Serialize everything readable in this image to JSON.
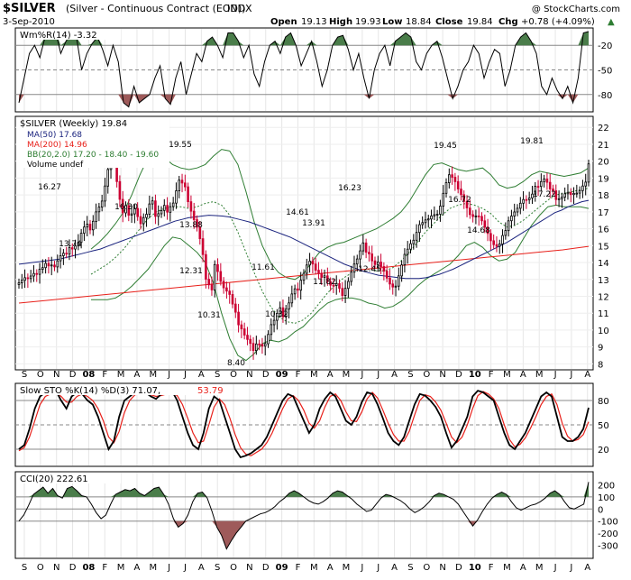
{
  "header": {
    "symbol": "$SILVER",
    "description": "(Silver - Continuous Contract (EOD))",
    "exchange": "INDX",
    "date": "3-Sep-2010",
    "copyright": "@ StockCharts.com",
    "open_label": "Open",
    "open": "19.13",
    "high_label": "High",
    "high": "19.93",
    "low_label": "Low",
    "low": "18.84",
    "close_label": "Close",
    "close": "19.84",
    "chg_label": "Chg",
    "chg": "+0.78 (+4.09%)",
    "chg_arrow": "▲"
  },
  "legends": {
    "wr": "Wm%R(14) -3.32",
    "price_title": "$SILVER (Weekly) 19.84",
    "ma50": "MA(50) 17.68",
    "ma200": "MA(200) 14.96",
    "bb": "BB(20,2.0) 17.20 - 18.40 - 19.60",
    "volume": "Volume undef",
    "sto_a": "Slow STO %K(14) %D(3) 71.07,",
    "sto_b": "53.79",
    "cci": "CCI(20) 222.61"
  },
  "colors": {
    "price_up": "#000000",
    "price_down": "#cc0033",
    "ma50": "#1a237e",
    "ma200": "#e8201a",
    "bollinger": "#2e7d32",
    "osc_fill_high": "#4a7d4a",
    "osc_fill_low": "#9e5a5a",
    "sto_d": "#e8201a"
  },
  "x_axis": {
    "tick_labels": [
      "S",
      "O",
      "N",
      "D",
      "08",
      "F",
      "M",
      "A",
      "M",
      "J",
      "J",
      "A",
      "S",
      "O",
      "N",
      "D",
      "09",
      "F",
      "M",
      "A",
      "M",
      "J",
      "J",
      "A",
      "S",
      "O",
      "N",
      "D",
      "10",
      "F",
      "M",
      "A",
      "M",
      "J",
      "J",
      "A"
    ]
  },
  "annotations": [
    "16.27",
    "16.30",
    "13.74",
    "19.55",
    "13.88",
    "12.31",
    "10.31",
    "8.40",
    "11.61",
    "10.32",
    "14.61",
    "13.91",
    "11.82",
    "16.23",
    "12.45",
    "19.45",
    "16.72",
    "14.68",
    "19.81",
    "17.22"
  ],
  "chart_data": [
    {
      "type": "line",
      "name": "Wm%R(14)",
      "ylim": [
        -100,
        0
      ],
      "y_ticks": [
        "-20",
        "-50",
        "-80"
      ],
      "reference_lines": [
        -20,
        -50,
        -80
      ],
      "values": [
        -90,
        -60,
        -30,
        -20,
        -35,
        -10,
        -5,
        -3,
        -30,
        -15,
        -5,
        -10,
        -50,
        -30,
        -18,
        -10,
        -25,
        -45,
        -20,
        -40,
        -90,
        -95,
        -70,
        -90,
        -85,
        -80,
        -60,
        -45,
        -85,
        -92,
        -60,
        -40,
        -80,
        -55,
        -30,
        -40,
        -15,
        -10,
        -20,
        -35,
        -5,
        -5,
        -15,
        -35,
        -20,
        -55,
        -70,
        -40,
        -20,
        -15,
        -30,
        -10,
        -5,
        -20,
        -45,
        -30,
        -15,
        -40,
        -70,
        -50,
        -20,
        -10,
        -8,
        -25,
        -50,
        -30,
        -60,
        -85,
        -50,
        -30,
        -20,
        -45,
        -15,
        -10,
        -5,
        -10,
        -40,
        -50,
        -30,
        -20,
        -15,
        -35,
        -60,
        -85,
        -70,
        -50,
        -40,
        -20,
        -30,
        -60,
        -40,
        -25,
        -30,
        -70,
        -50,
        -20,
        -10,
        -5,
        -15,
        -30,
        -70,
        -80,
        -60,
        -75,
        -85,
        -70,
        -90,
        -60,
        -5,
        -3.32
      ]
    },
    {
      "type": "candlestick",
      "name": "$SILVER (Weekly)",
      "ylim": [
        7.7,
        22.6
      ],
      "y_ticks": [
        "22",
        "21",
        "20",
        "19",
        "18",
        "17",
        "16",
        "15",
        "14",
        "13",
        "12",
        "11",
        "10",
        "9",
        "8"
      ],
      "close": [
        12.8,
        12.95,
        13.1,
        13.05,
        13.2,
        13.35,
        13.3,
        13.6,
        13.7,
        13.95,
        13.8,
        13.85,
        13.74,
        14.1,
        14.4,
        14.55,
        14.5,
        14.88,
        14.8,
        14.98,
        15.19,
        15.73,
        16.1,
        16.27,
        15.93,
        16.44,
        17.0,
        17.28,
        17.64,
        18.53,
        19.51,
        20.63,
        20.25,
        18.79,
        17.74,
        16.94,
        17.37,
        16.8,
        16.88,
        17.2,
        16.72,
        16.3,
        16.66,
        16.86,
        17.47,
        17.65,
        16.73,
        16.89,
        17.08,
        17.38,
        16.98,
        17.31,
        17.52,
        18.25,
        18.88,
        18.71,
        18.48,
        17.6,
        17.04,
        16.54,
        16.09,
        15.41,
        14.47,
        13.01,
        12.68,
        12.38,
        13.88,
        13.47,
        12.89,
        12.5,
        12.31,
        12.11,
        11.54,
        11.06,
        10.31,
        10.07,
        9.7,
        9.45,
        9.21,
        8.79,
        9.18,
        9.16,
        9.05,
        9.19,
        9.74,
        10.32,
        10.58,
        10.99,
        11.32,
        10.78,
        11.24,
        11.61,
        12.14,
        12.44,
        12.36,
        12.95,
        13.36,
        13.85,
        14.08,
        13.91,
        13.54,
        13.36,
        13.12,
        13.21,
        12.87,
        12.66,
        12.64,
        12.75,
        12.47,
        12.05,
        12.47,
        12.88,
        13.43,
        13.91,
        14.21,
        14.69,
        15.16,
        14.61,
        14.51,
        14.1,
        13.88,
        14.03,
        13.76,
        13.49,
        13.08,
        12.73,
        12.55,
        12.6,
        13.21,
        13.86,
        14.48,
        14.79,
        15.11,
        15.32,
        15.78,
        16.24,
        16.36,
        16.52,
        16.58,
        16.76,
        16.83,
        16.86,
        17.34,
        18.1,
        18.73,
        19.2,
        19.05,
        18.79,
        18.35,
        18.02,
        17.62,
        17.23,
        16.84,
        16.72,
        16.76,
        16.73,
        16.47,
        16.09,
        15.72,
        15.29,
        15.06,
        14.96,
        15.1,
        15.6,
        15.89,
        16.47,
        16.75,
        16.99,
        17.21,
        17.51,
        17.73,
        17.72,
        17.82,
        18.05,
        18.51,
        18.5,
        18.79,
        18.94,
        18.75,
        18.36,
        18.25,
        17.73,
        17.78,
        17.88,
        18.07,
        18.15,
        18.02,
        18.09,
        18.11,
        18.26,
        18.53,
        18.76,
        19.84
      ],
      "ma50": [
        13.9,
        13.95,
        14.0,
        14.05,
        14.1,
        14.15,
        14.2,
        14.3,
        14.4,
        14.5,
        14.6,
        14.7,
        14.8,
        14.95,
        15.1,
        15.25,
        15.4,
        15.55,
        15.7,
        15.85,
        16.0,
        16.15,
        16.3,
        16.45,
        16.55,
        16.65,
        16.7,
        16.75,
        16.8,
        16.78,
        16.75,
        16.7,
        16.6,
        16.5,
        16.4,
        16.25,
        16.1,
        15.95,
        15.8,
        15.65,
        15.5,
        15.3,
        15.1,
        14.9,
        14.7,
        14.5,
        14.3,
        14.1,
        13.9,
        13.75,
        13.6,
        13.45,
        13.35,
        13.25,
        13.2,
        13.15,
        13.1,
        13.05,
        13.05,
        13.05,
        13.1,
        13.2,
        13.3,
        13.45,
        13.6,
        13.8,
        14.0,
        14.2,
        14.4,
        14.6,
        14.8,
        15.0,
        15.2,
        15.45,
        15.7,
        15.95,
        16.2,
        16.45,
        16.7,
        16.95,
        17.1,
        17.3,
        17.45,
        17.6,
        17.68
      ],
      "ma200": [
        11.6,
        11.75,
        11.9,
        12.05,
        12.2,
        12.35,
        12.5,
        12.65,
        12.8,
        12.95,
        13.1,
        13.25,
        13.4,
        13.55,
        13.7,
        13.85,
        14.0,
        14.15,
        14.3,
        14.45,
        14.6,
        14.75,
        14.96
      ],
      "bb_middle": [
        13.3,
        13.6,
        13.9,
        14.3,
        14.8,
        15.4,
        16.0,
        16.6,
        17.0,
        17.2,
        17.3,
        17.3,
        17.2,
        17.3,
        17.5,
        17.6,
        17.4,
        16.8,
        15.8,
        14.6,
        13.4,
        12.3,
        11.4,
        10.8,
        10.5,
        10.4,
        10.6,
        11.0,
        11.6,
        12.2,
        12.7,
        13.1,
        13.4,
        13.6,
        13.6,
        13.5,
        13.5,
        13.7,
        14.1,
        14.6,
        15.2,
        15.8,
        16.3,
        16.8,
        17.2,
        17.4,
        17.5,
        17.4,
        17.2,
        16.9,
        16.4,
        16.1,
        16.2,
        16.5,
        16.9,
        17.3,
        17.7,
        18.0,
        18.1,
        18.2,
        18.3,
        18.4
      ],
      "bb_upper": [
        14.8,
        15.2,
        15.7,
        16.3,
        17.0,
        18.0,
        19.2,
        20.2,
        20.6,
        20.2,
        19.8,
        19.6,
        19.5,
        19.6,
        19.8,
        20.3,
        20.7,
        20.6,
        19.8,
        18.2,
        16.4,
        15.0,
        14.0,
        13.4,
        13.1,
        13.0,
        13.3,
        14.0,
        14.6,
        14.9,
        15.1,
        15.2,
        15.4,
        15.6,
        15.8,
        16.0,
        16.3,
        16.6,
        17.0,
        17.6,
        18.4,
        19.2,
        19.8,
        19.9,
        19.7,
        19.5,
        19.4,
        19.5,
        19.6,
        19.2,
        18.6,
        18.4,
        18.5,
        18.8,
        19.2,
        19.4,
        19.3,
        19.2,
        19.1,
        19.2,
        19.3,
        19.6
      ],
      "bb_lower": [
        11.8,
        11.8,
        11.8,
        11.9,
        12.2,
        12.6,
        13.1,
        13.6,
        14.3,
        15.0,
        15.5,
        15.4,
        15.0,
        14.6,
        14.0,
        12.8,
        11.0,
        9.5,
        8.5,
        8.2,
        8.6,
        9.2,
        9.4,
        9.3,
        9.5,
        9.9,
        10.2,
        10.7,
        11.2,
        11.6,
        11.8,
        11.9,
        11.9,
        11.8,
        11.6,
        11.5,
        11.3,
        11.4,
        11.7,
        12.1,
        12.6,
        13.0,
        13.3,
        13.6,
        13.9,
        14.4,
        15.0,
        15.2,
        14.9,
        14.4,
        14.1,
        14.2,
        14.6,
        15.4,
        16.2,
        16.8,
        17.3,
        17.4,
        17.3,
        17.3,
        17.3,
        17.2
      ]
    },
    {
      "type": "line",
      "name": "Slow STO %K(14) %D(3)",
      "ylim": [
        0,
        100
      ],
      "y_ticks": [
        "80",
        "50",
        "20"
      ],
      "reference_lines": [
        80,
        50,
        20
      ],
      "k": [
        20,
        25,
        45,
        70,
        85,
        90,
        88,
        92,
        80,
        70,
        85,
        90,
        88,
        80,
        75,
        60,
        40,
        20,
        30,
        60,
        80,
        85,
        90,
        88,
        90,
        85,
        82,
        88,
        90,
        92,
        80,
        60,
        40,
        25,
        20,
        40,
        70,
        85,
        80,
        60,
        40,
        20,
        10,
        12,
        15,
        20,
        25,
        35,
        50,
        65,
        80,
        88,
        85,
        70,
        55,
        40,
        50,
        70,
        82,
        90,
        85,
        70,
        55,
        50,
        60,
        78,
        90,
        88,
        75,
        58,
        40,
        30,
        25,
        35,
        55,
        75,
        88,
        86,
        80,
        72,
        60,
        40,
        22,
        30,
        45,
        60,
        85,
        92,
        90,
        85,
        80,
        60,
        40,
        25,
        20,
        30,
        40,
        55,
        70,
        85,
        90,
        85,
        60,
        35,
        30,
        30,
        35,
        45,
        71.07
      ],
      "d": [
        18,
        22,
        35,
        55,
        75,
        85,
        88,
        90,
        85,
        78,
        78,
        85,
        88,
        85,
        80,
        70,
        55,
        35,
        28,
        42,
        65,
        80,
        87,
        88,
        89,
        87,
        85,
        86,
        88,
        90,
        86,
        75,
        58,
        40,
        28,
        30,
        50,
        72,
        82,
        75,
        58,
        38,
        22,
        14,
        12,
        16,
        20,
        28,
        40,
        55,
        70,
        82,
        86,
        80,
        68,
        52,
        46,
        55,
        72,
        85,
        88,
        80,
        66,
        55,
        54,
        66,
        82,
        90,
        83,
        68,
        52,
        38,
        30,
        30,
        42,
        62,
        80,
        87,
        85,
        78,
        68,
        52,
        35,
        28,
        35,
        50,
        70,
        86,
        91,
        88,
        82,
        70,
        50,
        32,
        23,
        26,
        34,
        46,
        60,
        75,
        85,
        88,
        75,
        52,
        36,
        30,
        32,
        38,
        53.79
      ]
    },
    {
      "type": "line",
      "name": "CCI(20)",
      "ylim": [
        -400,
        300
      ],
      "y_ticks": [
        "200",
        "100",
        "0",
        "-100",
        "-200",
        "-300"
      ],
      "reference_lines": [
        100,
        0,
        -100
      ],
      "values": [
        -100,
        -50,
        30,
        120,
        150,
        180,
        130,
        170,
        110,
        90,
        170,
        185,
        150,
        110,
        100,
        40,
        -30,
        -80,
        -50,
        40,
        120,
        140,
        160,
        150,
        170,
        130,
        110,
        140,
        170,
        180,
        120,
        40,
        -80,
        -150,
        -120,
        -50,
        60,
        130,
        140,
        90,
        -20,
        -150,
        -220,
        -330,
        -260,
        -200,
        -150,
        -100,
        -80,
        -60,
        -40,
        -30,
        -10,
        20,
        60,
        90,
        130,
        150,
        130,
        100,
        70,
        50,
        40,
        60,
        90,
        130,
        150,
        140,
        110,
        80,
        40,
        10,
        -20,
        -10,
        40,
        90,
        120,
        110,
        90,
        70,
        40,
        0,
        -30,
        -10,
        20,
        60,
        110,
        130,
        120,
        100,
        80,
        40,
        -20,
        -80,
        -140,
        -90,
        -20,
        40,
        90,
        120,
        140,
        120,
        60,
        10,
        -10,
        10,
        30,
        40,
        60,
        90,
        130,
        150,
        120,
        60,
        10,
        0,
        20,
        40,
        222.61
      ]
    }
  ]
}
